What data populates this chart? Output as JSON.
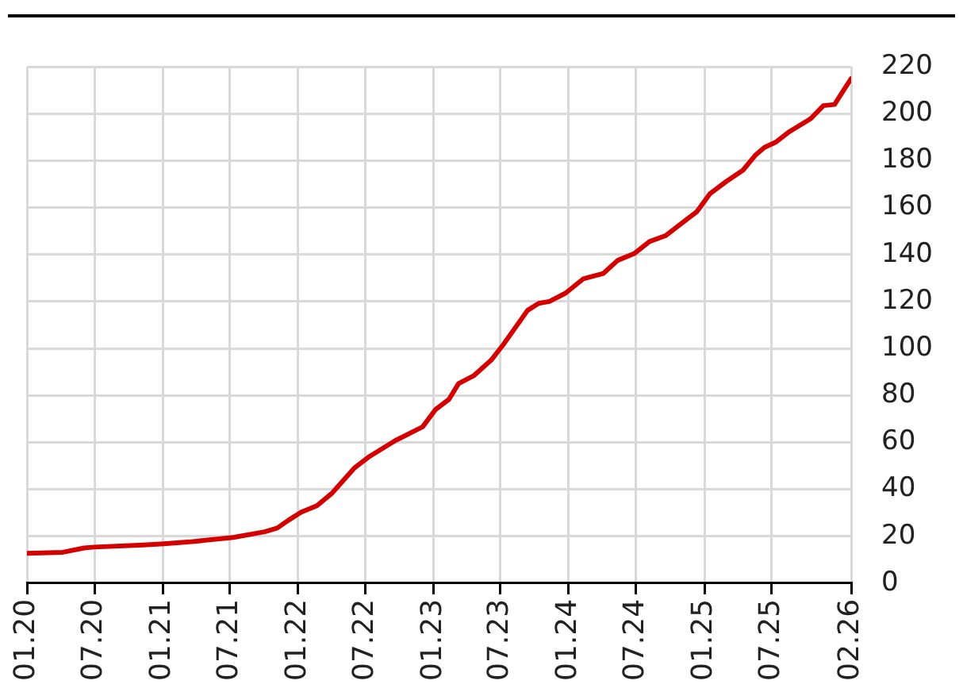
{
  "chart_data": {
    "type": "line",
    "x": [
      "2020-01-01",
      "2020-04-07",
      "2020-06-03",
      "2020-07-01",
      "2020-11-10",
      "2021-01-04",
      "2021-03-15",
      "2021-07-10",
      "2021-10-03",
      "2021-11-06",
      "2021-12-06",
      "2022-01-09",
      "2022-02-21",
      "2022-04-03",
      "2022-06-03",
      "2022-07-10",
      "2022-09-21",
      "2022-12-03",
      "2023-01-07",
      "2023-02-12",
      "2023-03-10",
      "2023-04-21",
      "2023-06-06",
      "2023-07-09",
      "2023-09-12",
      "2023-10-12",
      "2023-11-10",
      "2023-12-24",
      "2024-02-09",
      "2024-04-03",
      "2024-05-12",
      "2024-06-27",
      "2024-08-06",
      "2024-09-18",
      "2024-11-09",
      "2024-12-12",
      "2025-01-16",
      "2025-02-28",
      "2025-04-15",
      "2025-05-18",
      "2025-06-12",
      "2025-07-12",
      "2025-08-18",
      "2025-10-15",
      "2025-11-18",
      "2025-12-18",
      "2026-01-15",
      "2026-02-01"
    ],
    "series": [
      {
        "color": "#d40000",
        "values": [
          12.7,
          13.2,
          15,
          15.4,
          16.3,
          16.8,
          17.6,
          19.5,
          21.9,
          23.5,
          26.8,
          30.2,
          33,
          38.4,
          49.2,
          53.7,
          60.8,
          66.6,
          74,
          78.3,
          85,
          88.5,
          95,
          101.7,
          116.2,
          119.2,
          120,
          123.6,
          129.6,
          131.9,
          137.5,
          140.5,
          145.5,
          148,
          154.3,
          158.3,
          165.9,
          171,
          175.9,
          182.2,
          185.6,
          187.8,
          192.3,
          197.9,
          203.4,
          203.9,
          210.8,
          215
        ]
      }
    ],
    "xlim": [
      "2020-01-01",
      "2026-02-01"
    ],
    "xticks": [
      {
        "value": "2020-01",
        "label": "01.20"
      },
      {
        "value": "2020-07",
        "label": "07.20"
      },
      {
        "value": "2021-01",
        "label": "01.21"
      },
      {
        "value": "2021-07",
        "label": "07.21"
      },
      {
        "value": "2022-01",
        "label": "01.22"
      },
      {
        "value": "2022-07",
        "label": "07.22"
      },
      {
        "value": "2023-01",
        "label": "01.23"
      },
      {
        "value": "2023-07",
        "label": "07.23"
      },
      {
        "value": "2024-01",
        "label": "01.24"
      },
      {
        "value": "2024-07",
        "label": "07.24"
      },
      {
        "value": "2025-01",
        "label": "01.25"
      },
      {
        "value": "2025-07",
        "label": "07.25"
      },
      {
        "value": "2026-02",
        "label": "02.26"
      }
    ],
    "ylim": [
      0,
      220
    ],
    "yticks": [
      0,
      20,
      40,
      60,
      80,
      100,
      120,
      140,
      160,
      180,
      200,
      220
    ],
    "grid": true,
    "legend": false,
    "marker": "none",
    "line_style": "solid"
  }
}
